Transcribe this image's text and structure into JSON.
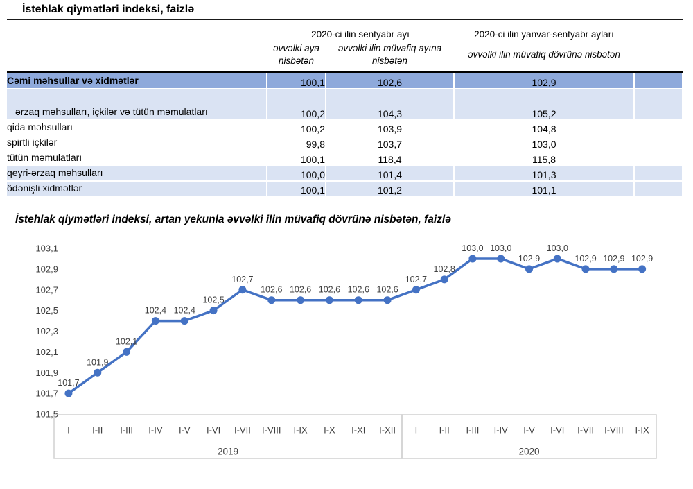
{
  "document": {
    "title": "İstehlak qiymətləri indeksi, faizlə"
  },
  "table": {
    "col_groups": [
      {
        "label": "2020-ci ilin sentyabr ayı"
      },
      {
        "label": "2020-ci ilin yanvar-sentyabr ayları"
      }
    ],
    "sub_headers": [
      "əvvəlki aya nisbətən",
      "əvvəlki ilin müvafiq ayına nisbətən",
      "əvvəlki ilin müvafiq dövrünə nisbətən"
    ],
    "rows": [
      {
        "label": "Cəmi məhsullar və xidmətlər",
        "values": [
          "100,1",
          "102,6",
          "102,9"
        ],
        "style": "total",
        "indent": "lvl0"
      },
      {
        "label": "ərzaq məhsulları, içkilər və tütün məmulatları",
        "values": [
          "100,2",
          "104,3",
          "105,2"
        ],
        "style": "light",
        "indent": "wrap"
      },
      {
        "label": "qida məhsulları",
        "values": [
          "100,2",
          "103,9",
          "104,8"
        ],
        "style": "plain",
        "indent": "lvl2"
      },
      {
        "label": "spirtli içkilər",
        "values": [
          "99,8",
          "103,7",
          "103,0"
        ],
        "style": "plain",
        "indent": "lvl2"
      },
      {
        "label": "tütün məmulatları",
        "values": [
          "100,1",
          "118,4",
          "115,8"
        ],
        "style": "plain",
        "indent": "lvl2"
      },
      {
        "label": "qeyri-ərzaq məhsulları",
        "values": [
          "100,0",
          "101,4",
          "101,3"
        ],
        "style": "light",
        "indent": "lvl1"
      },
      {
        "label": "ödənişli xidmətlər",
        "values": [
          "100,1",
          "101,2",
          "101,1"
        ],
        "style": "light",
        "indent": "lvl1"
      }
    ]
  },
  "chart_data": {
    "type": "line",
    "title": "İstehlak qiymətləri indeksi, artan yekunla əvvəlki ilin müvafiq dövrünə nisbətən, faizlə",
    "groups": [
      {
        "year": "2019",
        "categories": [
          "I",
          "I-II",
          "I-III",
          "I-IV",
          "I-V",
          "I-VI",
          "I-VII",
          "I-VIII",
          "I-IX",
          "I-X",
          "I-XI",
          "I-XII"
        ],
        "values": [
          101.7,
          101.9,
          102.1,
          102.4,
          102.4,
          102.5,
          102.7,
          102.6,
          102.6,
          102.6,
          102.6,
          102.6
        ]
      },
      {
        "year": "2020",
        "categories": [
          "I",
          "I-II",
          "I-III",
          "I-IV",
          "I-V",
          "I-VI",
          "I-VII",
          "I-VIII",
          "I-IX"
        ],
        "values": [
          102.7,
          102.8,
          103.0,
          103.0,
          102.9,
          103.0,
          102.9,
          102.9,
          102.9
        ]
      }
    ],
    "y_ticks": [
      103.1,
      102.9,
      102.7,
      102.5,
      102.3,
      102.1,
      101.9,
      101.7,
      101.5
    ],
    "ylim": [
      101.5,
      103.1
    ],
    "decimal_separator": ",",
    "grid": false,
    "legend": "none",
    "marker": "circle",
    "data_labels": "above"
  },
  "colors": {
    "line": "#4472C4",
    "marker": "#4472C4",
    "chart_text": "#404040",
    "axis_box_border": "#d0d0d0",
    "table_total_row_bg": "#8EA9DB",
    "table_light_row_bg": "#DAE3F3",
    "header_rule": "#000000"
  }
}
